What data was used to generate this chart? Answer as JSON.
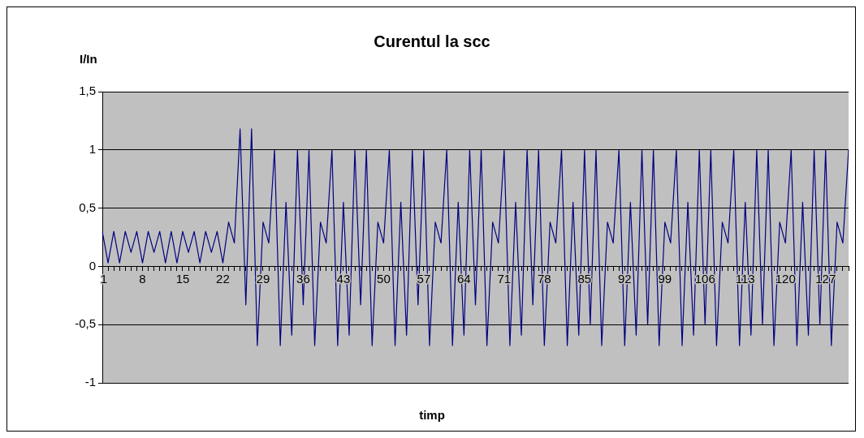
{
  "chart_data": {
    "type": "line",
    "title": "Curentul la scc",
    "xlabel": "timp",
    "ylabel": "I/In",
    "categories": [
      "1",
      null,
      null,
      null,
      null,
      null,
      null,
      "8",
      null,
      null,
      null,
      null,
      null,
      null,
      "15",
      null,
      null,
      null,
      null,
      null,
      null,
      "22",
      null,
      null,
      null,
      null,
      null,
      null,
      "29",
      null,
      null,
      null,
      null,
      null,
      null,
      "36",
      null,
      null,
      null,
      null,
      null,
      null,
      "43",
      null,
      null,
      null,
      null,
      null,
      null,
      "50",
      null,
      null,
      null,
      null,
      null,
      null,
      "57",
      null,
      null,
      null,
      null,
      null,
      null,
      "64",
      null,
      null,
      null,
      null,
      null,
      null,
      "71",
      null,
      null,
      null,
      null,
      null,
      null,
      "78",
      null,
      null,
      null,
      null,
      null,
      null,
      "85",
      null,
      null,
      null,
      null,
      null,
      null,
      "92",
      null,
      null,
      null,
      null,
      null,
      null,
      "99",
      null,
      null,
      null,
      null,
      null,
      null,
      "106",
      null,
      null,
      null,
      null,
      null,
      null,
      "113",
      null,
      null,
      null,
      null,
      null,
      null,
      "120",
      null,
      null,
      null,
      null,
      null,
      null,
      "127",
      null,
      null,
      null,
      null
    ],
    "series": [
      {
        "color": "#000080",
        "values": [
          0.3,
          0.03,
          0.3,
          0.03,
          0.3,
          0.12,
          0.3,
          0.03,
          0.3,
          0.12,
          0.3,
          0.03,
          0.3,
          0.03,
          0.3,
          0.12,
          0.3,
          0.03,
          0.3,
          0.12,
          0.3,
          0.03,
          0.38,
          0.2,
          1.18,
          -0.33,
          1.18,
          -0.68,
          0.38,
          0.2,
          1,
          -0.68,
          0.55,
          -0.59,
          1,
          -0.33,
          1,
          -0.68,
          0.38,
          0.2,
          1,
          -0.68,
          0.55,
          -0.59,
          1,
          -0.33,
          1,
          -0.68,
          0.38,
          0.2,
          1,
          -0.68,
          0.55,
          -0.59,
          1,
          -0.33,
          1,
          -0.68,
          0.38,
          0.2,
          1,
          -0.68,
          0.55,
          -0.59,
          1,
          -0.33,
          1,
          -0.68,
          0.38,
          0.2,
          1,
          -0.68,
          0.55,
          -0.59,
          1,
          -0.33,
          1,
          -0.68,
          0.38,
          0.2,
          1,
          -0.68,
          0.55,
          -0.59,
          1,
          -0.5,
          1,
          -0.68,
          0.38,
          0.2,
          1,
          -0.68,
          0.55,
          -0.59,
          1,
          -0.5,
          1,
          -0.68,
          0.38,
          0.2,
          1,
          -0.68,
          0.55,
          -0.59,
          1,
          -0.5,
          1,
          -0.68,
          0.38,
          0.2,
          1,
          -0.68,
          0.55,
          -0.59,
          1,
          -0.5,
          1,
          -0.68,
          0.38,
          0.2,
          1,
          -0.68,
          0.55,
          -0.59,
          1,
          -0.5,
          1,
          -0.68,
          0.38,
          0.2,
          1
        ]
      }
    ],
    "ylim": [
      -1,
      1.5
    ],
    "yticks": [
      -1,
      {
        "value": -0.5,
        "label": "-0,5"
      },
      0,
      {
        "value": 0.5,
        "label": "0,5"
      },
      1,
      {
        "value": 1.5,
        "label": "1,5"
      }
    ],
    "grid": "y",
    "legend": false,
    "marker": "none",
    "line_style": "solid"
  }
}
